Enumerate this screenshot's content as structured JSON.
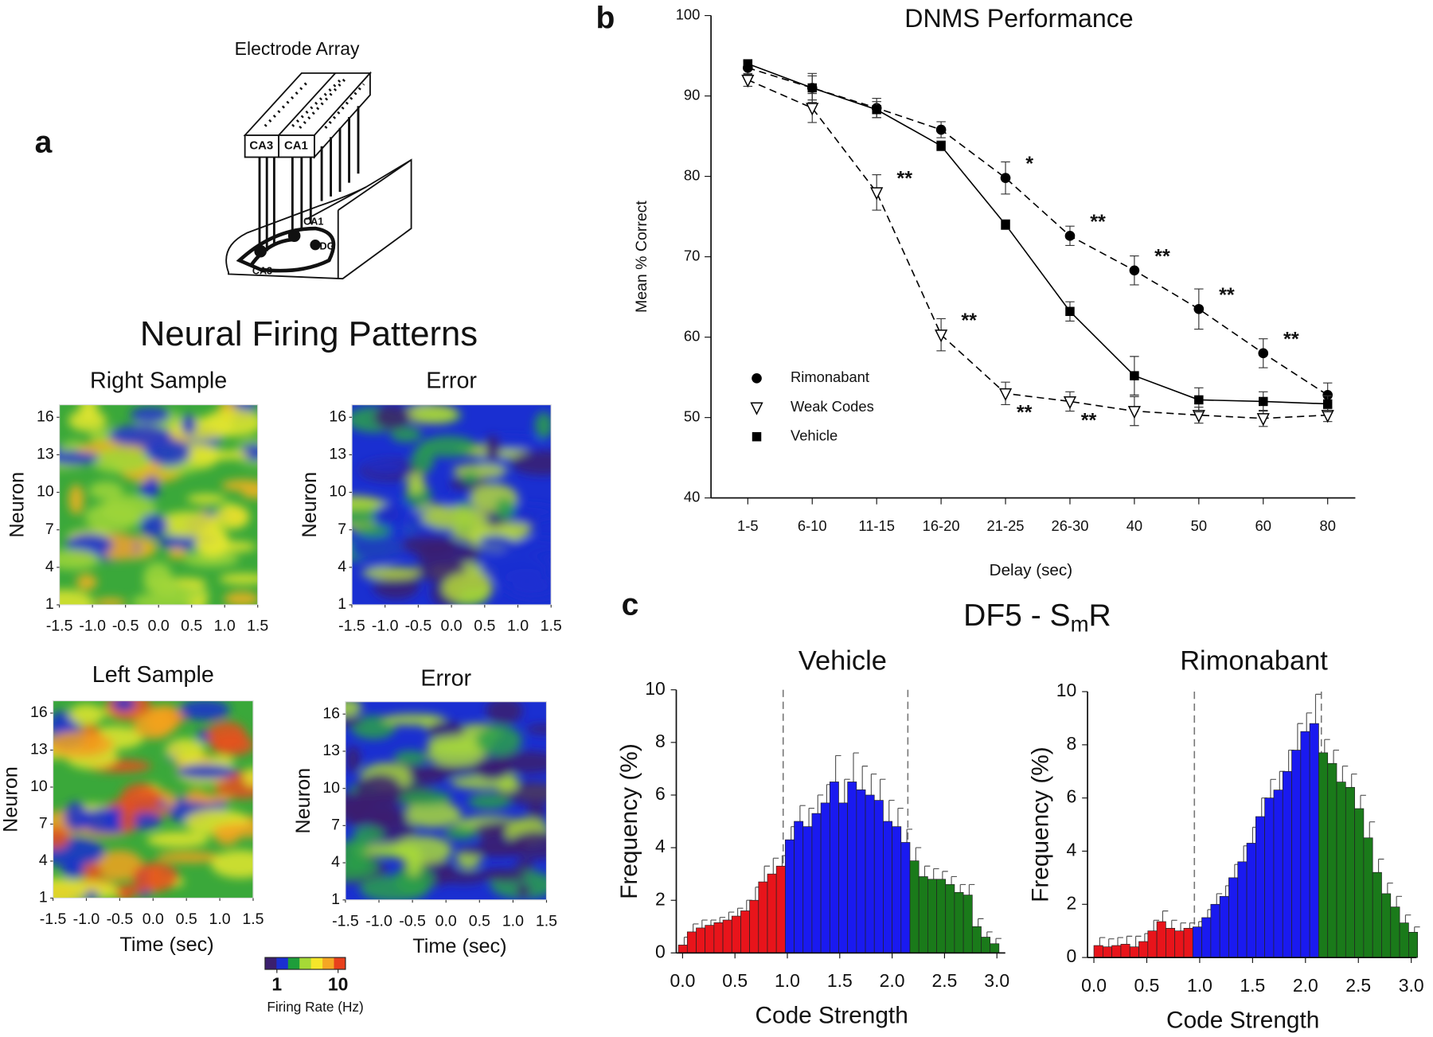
{
  "panel_labels": [
    "a",
    "b",
    "c"
  ],
  "diagram": {
    "title": "Electrode Array",
    "labels": [
      "CA3",
      "CA1",
      "CA1",
      "DG",
      "CA3"
    ]
  },
  "panel_a_title": "Neural Firing Patterns",
  "panel_c_title": {
    "text": "DF5 - S",
    "sub": "m",
    "tail": "R"
  },
  "colorbar": {
    "colors": [
      "#3b1f6e",
      "#1a2fd1",
      "#1e9e3a",
      "#a6d936",
      "#f5e62a",
      "#f5a623",
      "#e8401c"
    ],
    "log": true,
    "lim": [
      0.64,
      13.2
    ],
    "ticks": [
      1,
      10
    ],
    "label": "Firing Rate (Hz)"
  },
  "chart_data": [
    {
      "type": "heatmap",
      "title": "Right Sample",
      "ylabel": "Neuron",
      "xlim": [
        -1.5,
        1.5
      ],
      "ylim": [
        1,
        17
      ],
      "xticks": [
        -1.5,
        {
          "value": -1,
          "label": "-1.0"
        },
        -0.5,
        {
          "value": 0,
          "label": "0.0"
        },
        0.5,
        {
          "value": 1,
          "label": "1.0"
        },
        1.5
      ],
      "yticks": [
        1,
        4,
        7,
        10,
        13,
        16
      ],
      "colors": [
        "#3aa83a",
        "#1a2fd1",
        "#e3e62e",
        "#f2b21e",
        "#9fd63a"
      ]
    },
    {
      "type": "heatmap",
      "title": "Error",
      "ylabel": "Neuron",
      "xlim": [
        -1.5,
        1.5
      ],
      "ylim": [
        1,
        17
      ],
      "xticks": [
        -1.5,
        {
          "value": -1,
          "label": "-1.0"
        },
        -0.5,
        {
          "value": 0,
          "label": "0.0"
        },
        0.5,
        {
          "value": 1,
          "label": "1.0"
        },
        1.5
      ],
      "yticks": [
        1,
        4,
        7,
        10,
        13,
        16
      ],
      "colors": [
        "#1a2fd1",
        "#3b1f6e",
        "#2aa04a",
        "#b5d93a",
        "#1a2fd1"
      ]
    },
    {
      "type": "heatmap",
      "title": "Left Sample",
      "ylabel": "Neuron",
      "xlabel": "Time (sec)",
      "xlim": [
        -1.5,
        1.5
      ],
      "ylim": [
        1,
        17
      ],
      "xticks": [
        -1.5,
        {
          "value": -1,
          "label": "-1.0"
        },
        -0.5,
        {
          "value": 0,
          "label": "0.0"
        },
        0.5,
        {
          "value": 1,
          "label": "1.0"
        },
        1.5
      ],
      "yticks": [
        1,
        4,
        7,
        10,
        13,
        16
      ],
      "colors": [
        "#3aa83a",
        "#e3e62e",
        "#1a2fd1",
        "#f2a21e",
        "#e8501c"
      ]
    },
    {
      "type": "heatmap",
      "title": "Error",
      "ylabel": "Neuron",
      "xlabel": "Time (sec)",
      "xlim": [
        -1.5,
        1.5
      ],
      "ylim": [
        1,
        17
      ],
      "xticks": [
        -1.5,
        {
          "value": -1,
          "label": "-1.0"
        },
        -0.5,
        {
          "value": 0,
          "label": "0.0"
        },
        0.5,
        {
          "value": 1,
          "label": "1.0"
        },
        1.5
      ],
      "yticks": [
        1,
        4,
        7,
        10,
        13,
        16
      ],
      "colors": [
        "#1a2fd1",
        "#3b1f6e",
        "#2aa04a",
        "#a8d93a",
        "#3b1f6e"
      ]
    },
    {
      "type": "line",
      "title": "DNMS Performance",
      "ylabel": "Mean % Correct",
      "xlabel": "Delay (sec)",
      "categories": [
        "1-5",
        "6-10",
        "11-15",
        "16-20",
        "21-25",
        "26-30",
        "40",
        "50",
        "60",
        "80"
      ],
      "ylim": [
        40,
        100
      ],
      "yticks": [
        40,
        50,
        60,
        70,
        80,
        90,
        100
      ],
      "series": [
        {
          "name": "Rimonabant",
          "color": "#000000",
          "marker": "circle",
          "dashed": true,
          "values": [
            93.5,
            91,
            88.5,
            85.8,
            79.8,
            72.6,
            68.3,
            63.5,
            58,
            52.8
          ],
          "errors": [
            0.8,
            1.5,
            1.2,
            1,
            2,
            1.2,
            1.8,
            2.5,
            1.8,
            1.5
          ],
          "annotations": [
            null,
            null,
            null,
            null,
            "*",
            "**",
            "**",
            "**",
            "**",
            null
          ]
        },
        {
          "name": "Weak Codes",
          "color": "#000000",
          "marker": "triangle",
          "dashed": true,
          "values": [
            92,
            88.5,
            78,
            60.3,
            53,
            52,
            50.8,
            50.3,
            49.9,
            50.3
          ],
          "errors": [
            0.8,
            1.8,
            2.2,
            2,
            1.4,
            1.2,
            1.8,
            1,
            1,
            0.8
          ],
          "annotations": [
            null,
            null,
            "**",
            "**",
            "**",
            "**",
            null,
            null,
            null,
            null
          ]
        },
        {
          "name": "Vehicle",
          "color": "#000000",
          "marker": "square",
          "dashed": false,
          "values": [
            94,
            91,
            88.3,
            83.8,
            74,
            63.2,
            55.2,
            52.2,
            52,
            51.7
          ],
          "errors": [
            0.5,
            1.8,
            1,
            0.6,
            0.6,
            1.2,
            2.4,
            1.5,
            1.2,
            1
          ],
          "annotations": [
            null,
            null,
            null,
            null,
            null,
            null,
            null,
            null,
            null,
            null
          ]
        }
      ]
    },
    {
      "type": "histogram",
      "title": "Vehicle",
      "xlabel": "Code Strength",
      "ylabel": "Frequency (%)",
      "xlim": [
        -0.06,
        3.08
      ],
      "ylim": [
        0,
        10
      ],
      "xticks": [
        {
          "value": 0,
          "label": "0.0"
        },
        0.5,
        {
          "value": 1,
          "label": "1.0"
        },
        1.5,
        {
          "value": 2,
          "label": "2.0"
        },
        2.5,
        {
          "value": 3,
          "label": "3.0"
        }
      ],
      "yticks": [
        0,
        2,
        4,
        6,
        8,
        10
      ],
      "vlines": [
        0.96,
        2.15
      ],
      "bins": [
        -0.04,
        0.045,
        0.13,
        0.215,
        0.3,
        0.385,
        0.47,
        0.555,
        0.64,
        0.725,
        0.81,
        0.895,
        0.98,
        1.065,
        1.15,
        1.235,
        1.32,
        1.405,
        1.49,
        1.575,
        1.66,
        1.745,
        1.83,
        1.915,
        2.0,
        2.085,
        2.17,
        2.255,
        2.34,
        2.425,
        2.51,
        2.595,
        2.68,
        2.765,
        2.85,
        2.935,
        3.02
      ],
      "values": [
        0.3,
        0.8,
        0.95,
        1.05,
        1.15,
        1.25,
        1.4,
        1.6,
        2.0,
        2.7,
        3.0,
        3.3,
        4.3,
        5.0,
        4.8,
        5.3,
        5.7,
        6.5,
        5.7,
        6.5,
        6.2,
        6.0,
        5.8,
        5.0,
        4.8,
        4.2,
        3.5,
        2.9,
        2.8,
        2.8,
        2.6,
        2.3,
        2.2,
        1.0,
        0.6,
        0.35
      ],
      "errors": [
        0.3,
        0.3,
        0.3,
        0.2,
        0.2,
        0.3,
        0.3,
        0.4,
        0.5,
        0.6,
        0.6,
        0.4,
        0.5,
        0.6,
        0.7,
        0.7,
        0.7,
        1.0,
        0.9,
        1.1,
        0.9,
        0.8,
        0.8,
        0.8,
        0.7,
        0.5,
        0.5,
        0.4,
        0.4,
        0.3,
        0.3,
        0.3,
        0.4,
        0.3,
        0.2,
        0.2
      ],
      "colors": [
        "#e8141b",
        "#e8141b",
        "#e8141b",
        "#e8141b",
        "#e8141b",
        "#e8141b",
        "#e8141b",
        "#e8141b",
        "#e8141b",
        "#e8141b",
        "#e8141b",
        "#e8141b",
        "#1a1af0",
        "#1a1af0",
        "#1a1af0",
        "#1a1af0",
        "#1a1af0",
        "#1a1af0",
        "#1a1af0",
        "#1a1af0",
        "#1a1af0",
        "#1a1af0",
        "#1a1af0",
        "#1a1af0",
        "#1a1af0",
        "#1a1af0",
        "#1a7a1a",
        "#1a7a1a",
        "#1a7a1a",
        "#1a7a1a",
        "#1a7a1a",
        "#1a7a1a",
        "#1a7a1a",
        "#1a7a1a",
        "#1a7a1a",
        "#1a7a1a"
      ]
    },
    {
      "type": "histogram",
      "title": "Rimonabant",
      "xlabel": "Code Strength",
      "ylabel": "Frequency (%)",
      "xlim": [
        -0.06,
        3.05
      ],
      "ylim": [
        0,
        10
      ],
      "xticks": [
        {
          "value": 0,
          "label": "0.0"
        },
        0.5,
        {
          "value": 1,
          "label": "1.0"
        },
        1.5,
        {
          "value": 2,
          "label": "2.0"
        },
        2.5,
        {
          "value": 3,
          "label": "3.0"
        }
      ],
      "yticks": [
        0,
        2,
        4,
        6,
        8,
        10
      ],
      "vlines": [
        0.95,
        2.15
      ],
      "bins": [
        0,
        0.085,
        0.17,
        0.255,
        0.34,
        0.425,
        0.51,
        0.595,
        0.68,
        0.765,
        0.85,
        0.935,
        1.02,
        1.105,
        1.19,
        1.275,
        1.36,
        1.445,
        1.53,
        1.615,
        1.7,
        1.785,
        1.87,
        1.955,
        2.04,
        2.125,
        2.21,
        2.295,
        2.38,
        2.465,
        2.55,
        2.635,
        2.72,
        2.805,
        2.89,
        2.975,
        3.06
      ],
      "values": [
        0.45,
        0.4,
        0.45,
        0.5,
        0.4,
        0.6,
        1.0,
        1.35,
        1.1,
        1.0,
        1.1,
        1.15,
        1.5,
        2.0,
        2.3,
        3.0,
        3.6,
        4.3,
        5.3,
        6.0,
        6.3,
        7.0,
        7.8,
        8.5,
        8.8,
        7.7,
        7.3,
        6.6,
        6.4,
        5.6,
        4.5,
        3.2,
        2.4,
        1.9,
        1.3,
        0.95
      ],
      "errors": [
        0.3,
        0.3,
        0.3,
        0.3,
        0.4,
        0.3,
        0.4,
        0.4,
        0.3,
        0.3,
        0.2,
        0.2,
        0.3,
        0.4,
        0.4,
        0.5,
        0.6,
        0.6,
        0.7,
        0.7,
        0.7,
        0.8,
        1.0,
        0.7,
        1.1,
        0.5,
        0.5,
        0.6,
        0.5,
        0.5,
        0.6,
        0.5,
        0.4,
        0.4,
        0.3,
        0.2
      ],
      "colors": [
        "#e8141b",
        "#e8141b",
        "#e8141b",
        "#e8141b",
        "#e8141b",
        "#e8141b",
        "#e8141b",
        "#e8141b",
        "#e8141b",
        "#e8141b",
        "#e8141b",
        "#1a1af0",
        "#1a1af0",
        "#1a1af0",
        "#1a1af0",
        "#1a1af0",
        "#1a1af0",
        "#1a1af0",
        "#1a1af0",
        "#1a1af0",
        "#1a1af0",
        "#1a1af0",
        "#1a1af0",
        "#1a1af0",
        "#1a1af0",
        "#1a7a1a",
        "#1a7a1a",
        "#1a7a1a",
        "#1a7a1a",
        "#1a7a1a",
        "#1a7a1a",
        "#1a7a1a",
        "#1a7a1a",
        "#1a7a1a",
        "#1a7a1a",
        "#1a7a1a"
      ]
    }
  ]
}
